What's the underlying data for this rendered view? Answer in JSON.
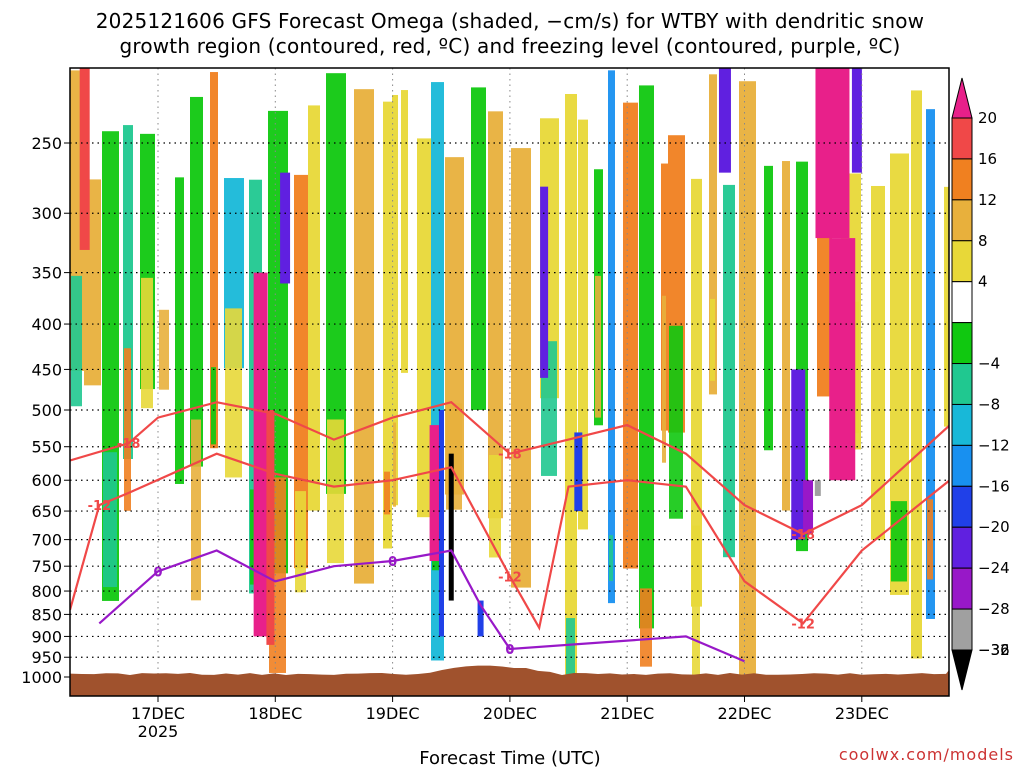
{
  "header": {
    "title_line1": "2025121606 GFS Forecast Omega (shaded, −cm/s) for WTBY with dendritic snow",
    "title_line2": "growth region (contoured, red, ºC) and freezing level (contoured, purple, ºC)"
  },
  "credit": "coolwx.com/models",
  "chart_data": {
    "type": "heatmap",
    "title": "2025121606 GFS Forecast Omega (shaded, −cm/s) for WTBY with dendritic snow growth region (contoured, red, ºC) and freezing level (contoured, purple, ºC)",
    "xlabel": "Forecast Time (UTC)",
    "ylabel": "",
    "y_scale": "log-pressure (inverted)",
    "y_ticks": [
      250,
      300,
      350,
      400,
      450,
      500,
      550,
      600,
      650,
      700,
      750,
      800,
      850,
      900,
      950,
      1000
    ],
    "ylim": [
      1000,
      200
    ],
    "x_ticks": [
      {
        "label": "17DEC",
        "sublabel": "2025",
        "time": "2025-12-17 00Z"
      },
      {
        "label": "18DEC",
        "sublabel": "",
        "time": "2025-12-18 00Z"
      },
      {
        "label": "19DEC",
        "sublabel": "",
        "time": "2025-12-19 00Z"
      },
      {
        "label": "20DEC",
        "sublabel": "",
        "time": "2025-12-20 00Z"
      },
      {
        "label": "21DEC",
        "sublabel": "",
        "time": "2025-12-21 00Z"
      },
      {
        "label": "22DEC",
        "sublabel": "",
        "time": "2025-12-22 00Z"
      },
      {
        "label": "23DEC",
        "sublabel": "",
        "time": "2025-12-23 00Z"
      }
    ],
    "xlim": [
      "2025-12-16 06Z",
      "2025-12-23 18Z"
    ],
    "grid": true,
    "colorbar": {
      "units": "−cm/s",
      "labels": [
        "20",
        "16",
        "12",
        "8",
        "4",
        "−4",
        "−8",
        "−12",
        "−16",
        "−20",
        "−24",
        "−28",
        "−32",
        "−36"
      ],
      "bins": [
        {
          "range": ">20",
          "color": "#e8208a"
        },
        {
          "range": "16 to 20",
          "color": "#f04848"
        },
        {
          "range": "12 to 16",
          "color": "#f08020"
        },
        {
          "range": "8 to 12",
          "color": "#e8b03c"
        },
        {
          "range": "4 to 8",
          "color": "#e8d838"
        },
        {
          "range": "-4 to 4",
          "color": "#ffffff"
        },
        {
          "range": "-8 to -4",
          "color": "#10c810"
        },
        {
          "range": "-12 to -8",
          "color": "#20c890"
        },
        {
          "range": "-16 to -12",
          "color": "#18b8d8"
        },
        {
          "range": "-20 to -16",
          "color": "#1890f0"
        },
        {
          "range": "-24 to -20",
          "color": "#2040e8"
        },
        {
          "range": "-28 to -24",
          "color": "#6020e0"
        },
        {
          "range": "-32 to -28",
          "color": "#9818c8"
        },
        {
          "range": "-36 to -32",
          "color": "#a0a0a0"
        },
        {
          "range": "<-36",
          "color": "#000000"
        }
      ]
    },
    "contours": {
      "dgz_color": "#f04848",
      "dgz_levels": [
        "-18",
        "-12"
      ],
      "freezing_color": "#9818c8",
      "freezing_level": "0",
      "dgz_minus18": [
        [
          "2025-12-16 06Z",
          570
        ],
        [
          "2025-12-16 18Z",
          545
        ],
        [
          "2025-12-17 00Z",
          510
        ],
        [
          "2025-12-17 12Z",
          490
        ],
        [
          "2025-12-18 00Z",
          505
        ],
        [
          "2025-12-18 12Z",
          540
        ],
        [
          "2025-12-19 00Z",
          510
        ],
        [
          "2025-12-19 12Z",
          490
        ],
        [
          "2025-12-20 00Z",
          560
        ],
        [
          "2025-12-20 12Z",
          540
        ],
        [
          "2025-12-21 00Z",
          520
        ],
        [
          "2025-12-21 12Z",
          560
        ],
        [
          "2025-12-22 00Z",
          640
        ],
        [
          "2025-12-22 12Z",
          690
        ],
        [
          "2025-12-23 00Z",
          640
        ],
        [
          "2025-12-23 18Z",
          520
        ]
      ],
      "dgz_minus12": [
        [
          "2025-12-16 06Z",
          840
        ],
        [
          "2025-12-16 12Z",
          640
        ],
        [
          "2025-12-16 18Z",
          620
        ],
        [
          "2025-12-17 12Z",
          560
        ],
        [
          "2025-12-18 00Z",
          590
        ],
        [
          "2025-12-18 12Z",
          610
        ],
        [
          "2025-12-19 00Z",
          600
        ],
        [
          "2025-12-19 12Z",
          580
        ],
        [
          "2025-12-20 00Z",
          770
        ],
        [
          "2025-12-20 06Z",
          880
        ],
        [
          "2025-12-20 12Z",
          610
        ],
        [
          "2025-12-21 00Z",
          600
        ],
        [
          "2025-12-21 12Z",
          610
        ],
        [
          "2025-12-22 00Z",
          780
        ],
        [
          "2025-12-22 12Z",
          870
        ],
        [
          "2025-12-23 00Z",
          720
        ],
        [
          "2025-12-23 18Z",
          600
        ]
      ],
      "freezing_0C": [
        [
          "2025-12-16 12Z",
          870
        ],
        [
          "2025-12-17 00Z",
          760
        ],
        [
          "2025-12-17 12Z",
          720
        ],
        [
          "2025-12-18 00Z",
          780
        ],
        [
          "2025-12-18 12Z",
          750
        ],
        [
          "2025-12-19 00Z",
          740
        ],
        [
          "2025-12-19 12Z",
          720
        ],
        [
          "2025-12-19 18Z",
          830
        ],
        [
          "2025-12-20 00Z",
          930
        ],
        [
          "2025-12-21 12Z",
          900
        ],
        [
          "2025-12-22 00Z",
          960
        ]
      ]
    }
  }
}
